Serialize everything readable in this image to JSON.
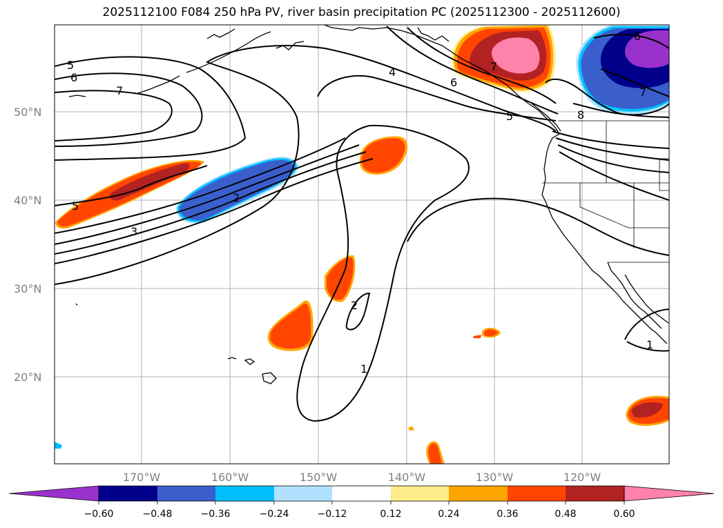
{
  "title": "2025112100 F084 250 hPa PV, river basin precipitation PC (2025112300 - 2025112600)",
  "lat_labels": [
    "50°N",
    "40°N",
    "30°N",
    "20°N"
  ],
  "lon_labels": [
    "170°W",
    "160°W",
    "150°W",
    "140°W",
    "130°W",
    "120°W"
  ],
  "contour_labels": [
    "5",
    "6",
    "7",
    "5",
    "3",
    "2",
    "4",
    "6",
    "7",
    "5",
    "8",
    "6",
    "7",
    "2",
    "1",
    "1"
  ],
  "colorbar": {
    "ticks": [
      "−0.60",
      "−0.48",
      "−0.36",
      "−0.24",
      "−0.12",
      "0.12",
      "0.24",
      "0.36",
      "0.48",
      "0.60"
    ],
    "colors": [
      "#9932cc",
      "#00008b",
      "#3a5fcd",
      "#00bfff",
      "#b0e2ff",
      "#ffffff",
      "#ffec8b",
      "#ffa500",
      "#ff4500",
      "#b22222",
      "#ff82ab"
    ]
  },
  "colors": {
    "neg_060": "#9932cc",
    "neg_048": "#00008b",
    "neg_036": "#3a5fcd",
    "neg_024": "#00bfff",
    "neg_012": "#b0e2ff",
    "pos_012": "#ffec8b",
    "pos_024": "#ffa500",
    "pos_036": "#ff4500",
    "pos_048": "#b22222",
    "pos_060": "#ff82ab"
  }
}
